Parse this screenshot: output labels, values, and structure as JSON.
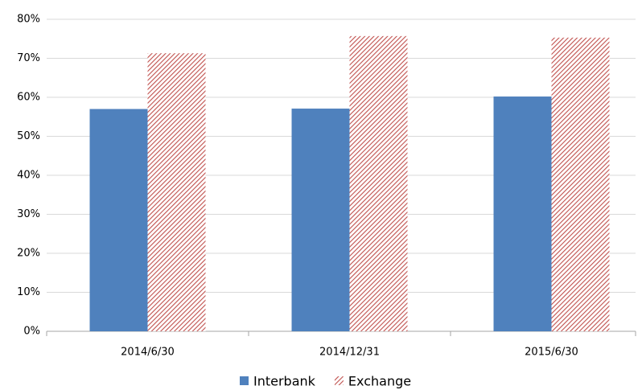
{
  "chart_data": {
    "type": "bar",
    "categories": [
      "2014/6/30",
      "2014/12/31",
      "2015/6/30"
    ],
    "series": [
      {
        "name": "Interbank",
        "color": "#4f81bd",
        "fill_style": "solid",
        "values": [
          57,
          57.1,
          60.2
        ]
      },
      {
        "name": "Exchange",
        "color": "#c0504d",
        "fill_style": "hatch",
        "values": [
          71.3,
          75.7,
          75.3
        ]
      }
    ],
    "ylim": [
      0,
      80
    ],
    "yticks": [
      {
        "value": 0,
        "label": "0%"
      },
      {
        "value": 10,
        "label": "10%"
      },
      {
        "value": 20,
        "label": "20%"
      },
      {
        "value": 30,
        "label": "30%"
      },
      {
        "value": 40,
        "label": "40%"
      },
      {
        "value": 50,
        "label": "50%"
      },
      {
        "value": 60,
        "label": "60%"
      },
      {
        "value": 70,
        "label": "70%"
      },
      {
        "value": 80,
        "label": "80%"
      }
    ],
    "grid": true,
    "legend": "bottom"
  }
}
